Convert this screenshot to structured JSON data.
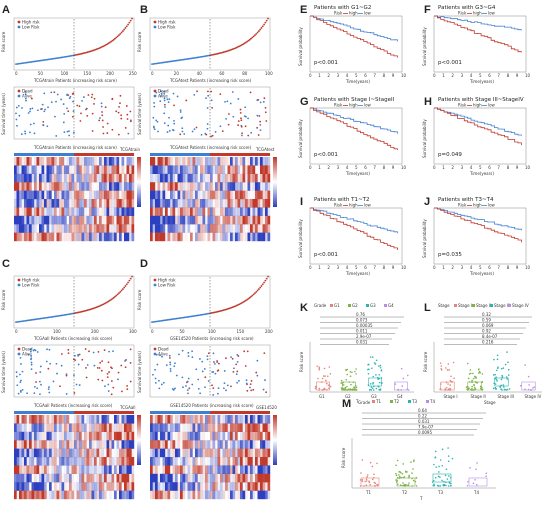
{
  "panels": {
    "A": "A",
    "B": "B",
    "C": "C",
    "D": "D",
    "E": "E",
    "F": "F",
    "G": "G",
    "H": "H",
    "I": "I",
    "J": "J",
    "K": "K",
    "L": "L",
    "M": "M"
  },
  "risk_panels": [
    {
      "id": "A",
      "legend_high": "High risk",
      "legend_low": "Low Risk",
      "status_dead": "Dead",
      "status_alive": "Alive",
      "y_risk": "Risk score",
      "y_surv": "Survival time (years)",
      "x_label1": "TCGAtrain Patients (increasing risk score)",
      "x_label2": "TCGAtrain Patients (increasing risk score)",
      "heat_title": "TCGAtrain",
      "n": 260,
      "ticks": [
        "0",
        "50",
        "100",
        "150",
        "200",
        "250"
      ]
    },
    {
      "id": "B",
      "legend_high": "High risk",
      "legend_low": "Low Risk",
      "status_dead": "Dead",
      "status_alive": "Alive",
      "y_risk": "Risk score",
      "y_surv": "Survival time (years)",
      "x_label1": "TCGAtest Patients (increasing risk score)",
      "x_label2": "TCGAtest Patients (increasing risk score)",
      "heat_title": "TCGAtest",
      "n": 110,
      "ticks": [
        "0",
        "20",
        "40",
        "60",
        "80",
        "100"
      ]
    },
    {
      "id": "C",
      "legend_high": "High risk",
      "legend_low": "Low Risk",
      "status_dead": "Dead",
      "status_alive": "Alive",
      "y_risk": "Risk score",
      "y_surv": "Survival time (years)",
      "x_label1": "TCGAall Patients (increasing risk score)",
      "x_label2": "TCGAall Patients (increasing risk score)",
      "heat_title": "TCGAall",
      "n": 370,
      "ticks": [
        "0",
        "100",
        "200",
        "300"
      ]
    },
    {
      "id": "D",
      "legend_high": "High risk",
      "legend_low": "Low Risk",
      "status_dead": "Dead",
      "status_alive": "Alive",
      "y_risk": "Risk score",
      "y_surv": "Survival time (years)",
      "x_label1": "GSE14520 Patients (increasing risk score)",
      "x_label2": "GSE14520 Patients (increasing risk score)",
      "heat_title": "GSE14520",
      "n": 220,
      "ticks": [
        "0",
        "50",
        "100",
        "150",
        "200"
      ]
    }
  ],
  "km_panels": [
    {
      "id": "E",
      "title": "Patients with G1~G2",
      "pvalue": "p<0.001",
      "legend": [
        "Risk",
        "high",
        "low"
      ]
    },
    {
      "id": "F",
      "title": "Patients with G3~G4",
      "pvalue": "p<0.001",
      "legend": [
        "Risk",
        "high",
        "low"
      ]
    },
    {
      "id": "G",
      "title": "Patients with Stage I~StageII",
      "pvalue": "p<0.001",
      "legend": [
        "Risk",
        "high",
        "low"
      ]
    },
    {
      "id": "H",
      "title": "Patients with Stage III~StageIV",
      "pvalue": "p=0.049",
      "legend": [
        "Risk",
        "high",
        "low"
      ]
    },
    {
      "id": "I",
      "title": "Patients with T1~T2",
      "pvalue": "p<0.001",
      "legend": [
        "Risk",
        "high",
        "low"
      ]
    },
    {
      "id": "J",
      "title": "Patients with T3~T4",
      "pvalue": "p=0.035",
      "legend": [
        "Risk",
        "high",
        "low"
      ]
    }
  ],
  "km_axes": {
    "ylabel": "Survival probability",
    "xlabel": "Time(years)",
    "xticks": [
      "0",
      "1",
      "2",
      "3",
      "4",
      "5",
      "6",
      "7",
      "8",
      "9",
      "10"
    ],
    "yticks": [
      "0.00",
      "0.25",
      "0.50",
      "0.75",
      "1.00"
    ]
  },
  "box_panels": [
    {
      "id": "K",
      "legend_title": "Grade",
      "groups": [
        "G1",
        "G2",
        "G3",
        "G4"
      ],
      "xlabel": "Grade",
      "pvals": [
        "0.76",
        "0.073",
        "0.00035",
        "0.011",
        "2.9e-07",
        "0.031"
      ]
    },
    {
      "id": "L",
      "legend_title": "Stage",
      "groups": [
        "Stage I",
        "Stage II",
        "Stage III",
        "Stage IV"
      ],
      "xlabel": "Stage",
      "pvals": [
        "0.32",
        "0.59",
        "0.069",
        "0.92",
        "8.4e-07",
        "0.216"
      ]
    },
    {
      "id": "M",
      "legend_title": "T",
      "groups": [
        "T1",
        "T2",
        "T3",
        "T4"
      ],
      "xlabel": "T",
      "pvals": [
        "0.64",
        "0.22",
        "0.031",
        "7.9e-07",
        "0.0095"
      ]
    }
  ],
  "box_ylabel": "Risk score",
  "colors": {
    "high": "#c0392b",
    "low": "#3d7fd1",
    "heat_hi": "#c0392b",
    "heat_lo": "#2b3fbf",
    "g1": "#e8837a",
    "g2": "#7fb34a",
    "g3": "#2ab5b0",
    "g4": "#b68ee6"
  },
  "chart_data": [
    {
      "type": "scatter",
      "title": "",
      "note": "risk score curves (panels A-D)"
    },
    {
      "type": "line",
      "title": "",
      "note": "Kaplan-Meier curves (panels E-J)"
    },
    {
      "type": "bar",
      "title": "",
      "note": "box plots of risk score by Grade/Stage/T (panels K-M)"
    }
  ]
}
